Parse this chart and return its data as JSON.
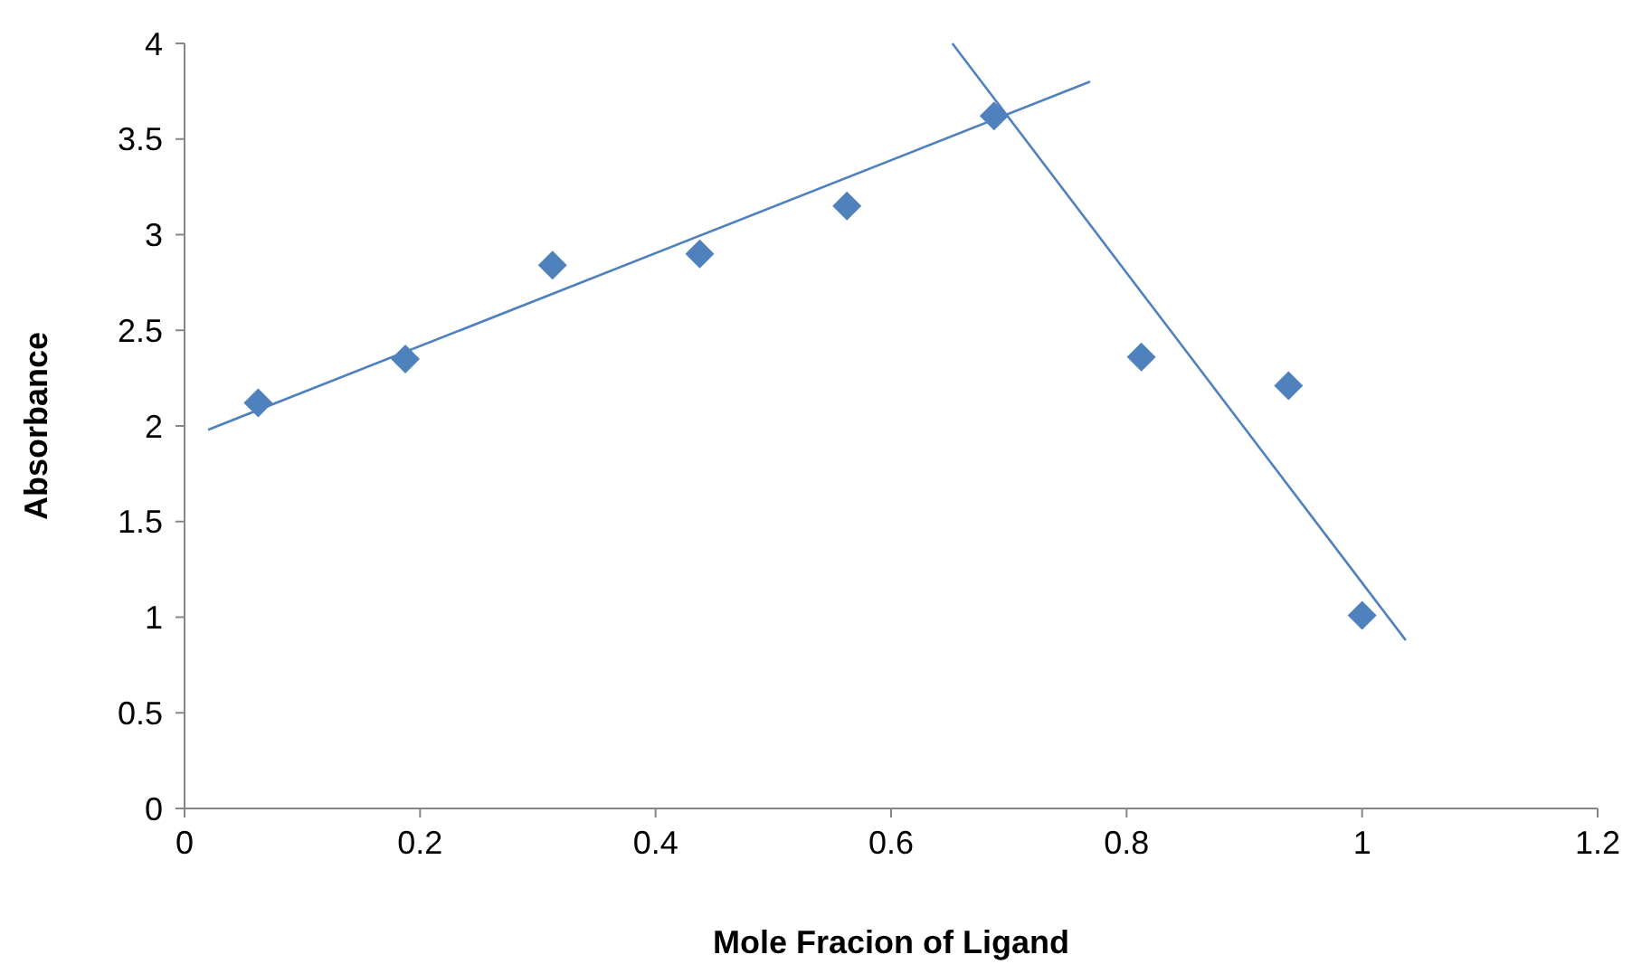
{
  "chart_data": {
    "type": "scatter",
    "xlabel": "Mole Fracion of Ligand",
    "ylabel": "Absorbance",
    "xlim": [
      0,
      1.2
    ],
    "ylim": [
      0,
      4
    ],
    "xticks": [
      0,
      0.2,
      0.4,
      0.6,
      0.8,
      1,
      1.2
    ],
    "yticks": [
      0,
      0.5,
      1,
      1.5,
      2,
      2.5,
      3,
      3.5,
      4
    ],
    "grid": false,
    "series": [
      {
        "color": "#4f81bd",
        "marker": "diamond",
        "x": [
          0.0625,
          0.1875,
          0.3125,
          0.4375,
          0.5625,
          0.6875,
          0.8125,
          0.9375,
          1
        ],
        "values": [
          2.12,
          2.35,
          2.84,
          2.9,
          3.15,
          3.62,
          2.36,
          2.21,
          1.01
        ]
      },
      {
        "type": "line",
        "color": "#4f81bd",
        "marker": "none",
        "line_style": "solid",
        "x": [
          0.02,
          0.769
        ],
        "values": [
          1.98,
          3.8
        ]
      },
      {
        "type": "line",
        "color": "#4f81bd",
        "marker": "none",
        "line_style": "solid",
        "x": [
          0.652,
          1.037
        ],
        "values": [
          4,
          0.88
        ]
      }
    ]
  }
}
